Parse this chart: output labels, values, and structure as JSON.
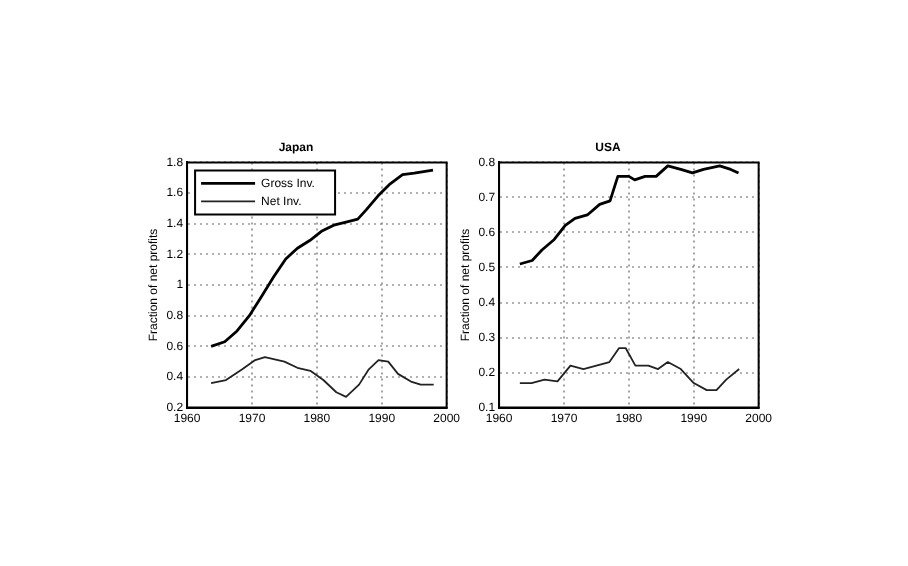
{
  "chart_data": [
    {
      "type": "line",
      "title": "Japan",
      "ylabel": "Fraction of net profits",
      "xlim": [
        1960,
        2000
      ],
      "xticks": [
        1960,
        1970,
        1980,
        1990,
        2000
      ],
      "ylim": [
        0.2,
        1.8
      ],
      "yticks": [
        0.2,
        0.4,
        0.6,
        0.8,
        1,
        1.2,
        1.4,
        1.6,
        1.8
      ],
      "grid": true,
      "legend": "top left",
      "marker": "none",
      "line_style": "solid",
      "series": [
        {
          "name": "Gross Inv.",
          "color": "#000000",
          "x": [
            1963.7,
            1965.8,
            1967.7,
            1969.6,
            1971.4,
            1973.3,
            1975.2,
            1977.0,
            1978.9,
            1980.7,
            1982.6,
            1984.5,
            1986.3,
            1987.6,
            1989.4,
            1991.3,
            1993.2,
            1995.0,
            1997.9
          ],
          "values": [
            0.6,
            0.63,
            0.7,
            0.8,
            0.92,
            1.05,
            1.17,
            1.24,
            1.29,
            1.35,
            1.39,
            1.41,
            1.43,
            1.49,
            1.58,
            1.66,
            1.72,
            1.73,
            1.75
          ]
        },
        {
          "name": "Net Inv.",
          "color": "#222222",
          "x": [
            1963.7,
            1966,
            1968.5,
            1970.5,
            1972,
            1975,
            1977,
            1979,
            1981,
            1983,
            1984.5,
            1986.5,
            1988,
            1989.5,
            1991,
            1992.5,
            1994.5,
            1996,
            1998
          ],
          "values": [
            0.36,
            0.38,
            0.45,
            0.51,
            0.53,
            0.5,
            0.46,
            0.44,
            0.38,
            0.3,
            0.27,
            0.35,
            0.45,
            0.51,
            0.5,
            0.42,
            0.37,
            0.35,
            0.35
          ]
        }
      ]
    },
    {
      "type": "line",
      "title": "USA",
      "ylabel": "Fraction of net profits",
      "xlim": [
        1960,
        2000
      ],
      "xticks": [
        1960,
        1970,
        1980,
        1990,
        2000
      ],
      "ylim": [
        0.1,
        0.8
      ],
      "yticks": [
        0.1,
        0.2,
        0.3,
        0.4,
        0.5,
        0.6,
        0.7,
        0.8
      ],
      "grid": true,
      "marker": "none",
      "line_style": "solid",
      "series": [
        {
          "color": "#000000",
          "x": [
            1963.2,
            1965.1,
            1966.6,
            1968.5,
            1970.2,
            1971.7,
            1973.6,
            1975.5,
            1977.1,
            1978.3,
            1980,
            1980.9,
            1982.5,
            1984.2,
            1986,
            1988,
            1989.8,
            1991.5,
            1994,
            1995.7,
            1996.9
          ],
          "values": [
            0.51,
            0.52,
            0.55,
            0.58,
            0.62,
            0.64,
            0.65,
            0.68,
            0.69,
            0.76,
            0.76,
            0.75,
            0.76,
            0.76,
            0.79,
            0.78,
            0.77,
            0.78,
            0.79,
            0.78,
            0.77
          ]
        },
        {
          "color": "#222222",
          "x": [
            1963.2,
            1965,
            1967,
            1969,
            1971,
            1973,
            1975,
            1977,
            1978.5,
            1979.5,
            1981,
            1983,
            1984.5,
            1986,
            1988,
            1990,
            1992,
            1993.5,
            1995,
            1997
          ],
          "values": [
            0.17,
            0.17,
            0.18,
            0.175,
            0.22,
            0.21,
            0.22,
            0.23,
            0.27,
            0.27,
            0.22,
            0.22,
            0.21,
            0.23,
            0.21,
            0.17,
            0.15,
            0.15,
            0.18,
            0.21
          ]
        }
      ]
    }
  ]
}
